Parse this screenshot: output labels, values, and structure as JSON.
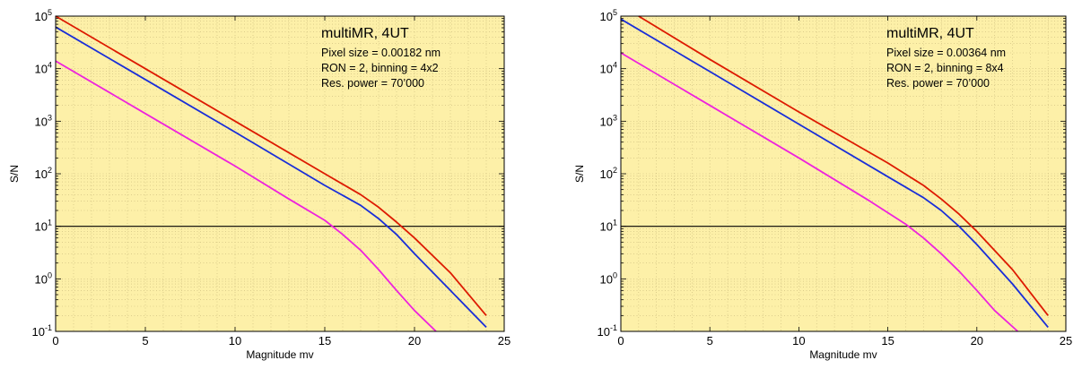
{
  "chart_data": [
    {
      "type": "line",
      "xlabel": "Magnitude mv",
      "ylabel": "S/N",
      "xlim": [
        0,
        25
      ],
      "ylim": [
        0.1,
        100000
      ],
      "yscale": "log",
      "grid": true,
      "background": "#fdf0a8",
      "x_ticks": [
        "0",
        "5",
        "10",
        "15",
        "20",
        "25"
      ],
      "y_ticks": [
        {
          "base": "10",
          "exp": "-1"
        },
        {
          "base": "10",
          "exp": "0"
        },
        {
          "base": "10",
          "exp": "1"
        },
        {
          "base": "10",
          "exp": "2"
        },
        {
          "base": "10",
          "exp": "3"
        },
        {
          "base": "10",
          "exp": "4"
        },
        {
          "base": "10",
          "exp": "5"
        }
      ],
      "annotation": {
        "title": "multiMR, 4UT",
        "lines": [
          "Pixel size = 0.00182 nm",
          "RON = 2, binning = 4x2",
          "Res. power = 70’000"
        ]
      },
      "reference_line": {
        "y": 10,
        "color": "#000000"
      },
      "series": [
        {
          "color": "#dd1a00",
          "x": [
            0,
            5,
            10,
            15,
            17,
            18,
            19,
            20,
            22,
            24
          ],
          "y": [
            100000,
            10000,
            1000,
            100,
            40,
            23,
            12,
            6,
            1.3,
            0.2
          ]
        },
        {
          "color": "#1a2ed8",
          "x": [
            0,
            5,
            10,
            15,
            17,
            18,
            19,
            20,
            22,
            24
          ],
          "y": [
            62000,
            6200,
            620,
            60,
            25,
            14,
            7,
            3,
            0.6,
            0.12
          ]
        },
        {
          "color": "#ee22dd",
          "x": [
            0,
            5,
            10,
            13,
            15,
            16,
            17,
            18,
            19,
            20,
            21.2
          ],
          "y": [
            14000,
            1400,
            140,
            33,
            13,
            7,
            3.5,
            1.5,
            0.6,
            0.25,
            0.1
          ]
        }
      ]
    },
    {
      "type": "line",
      "xlabel": "Magnitude mv",
      "ylabel": "S/N",
      "xlim": [
        0,
        25
      ],
      "ylim": [
        0.1,
        100000
      ],
      "yscale": "log",
      "grid": true,
      "background": "#fdf0a8",
      "x_ticks": [
        "0",
        "5",
        "10",
        "15",
        "20",
        "25"
      ],
      "y_ticks": [
        {
          "base": "10",
          "exp": "-1"
        },
        {
          "base": "10",
          "exp": "0"
        },
        {
          "base": "10",
          "exp": "1"
        },
        {
          "base": "10",
          "exp": "2"
        },
        {
          "base": "10",
          "exp": "3"
        },
        {
          "base": "10",
          "exp": "4"
        },
        {
          "base": "10",
          "exp": "5"
        }
      ],
      "annotation": {
        "title": "multiMR, 4UT",
        "lines": [
          "Pixel size = 0.00364 nm",
          "RON = 2, binning = 8x4",
          "Res. power = 70’000"
        ]
      },
      "reference_line": {
        "y": 10,
        "color": "#000000"
      },
      "series": [
        {
          "color": "#dd1a00",
          "x": [
            1,
            5,
            10,
            15,
            17,
            18,
            19,
            20,
            22,
            24
          ],
          "y": [
            100000,
            15000,
            1500,
            160,
            60,
            33,
            17,
            8,
            1.5,
            0.2
          ]
        },
        {
          "color": "#1a2ed8",
          "x": [
            0,
            5,
            10,
            15,
            17,
            18,
            19,
            20,
            22,
            24
          ],
          "y": [
            88000,
            8800,
            880,
            88,
            35,
            20,
            10,
            4.5,
            0.8,
            0.12
          ]
        },
        {
          "color": "#ee22dd",
          "x": [
            0,
            5,
            10,
            14,
            16,
            17,
            18,
            19,
            20,
            21,
            22.3
          ],
          "y": [
            20000,
            2000,
            200,
            30,
            11,
            6,
            3,
            1.4,
            0.6,
            0.25,
            0.1
          ]
        }
      ]
    }
  ]
}
